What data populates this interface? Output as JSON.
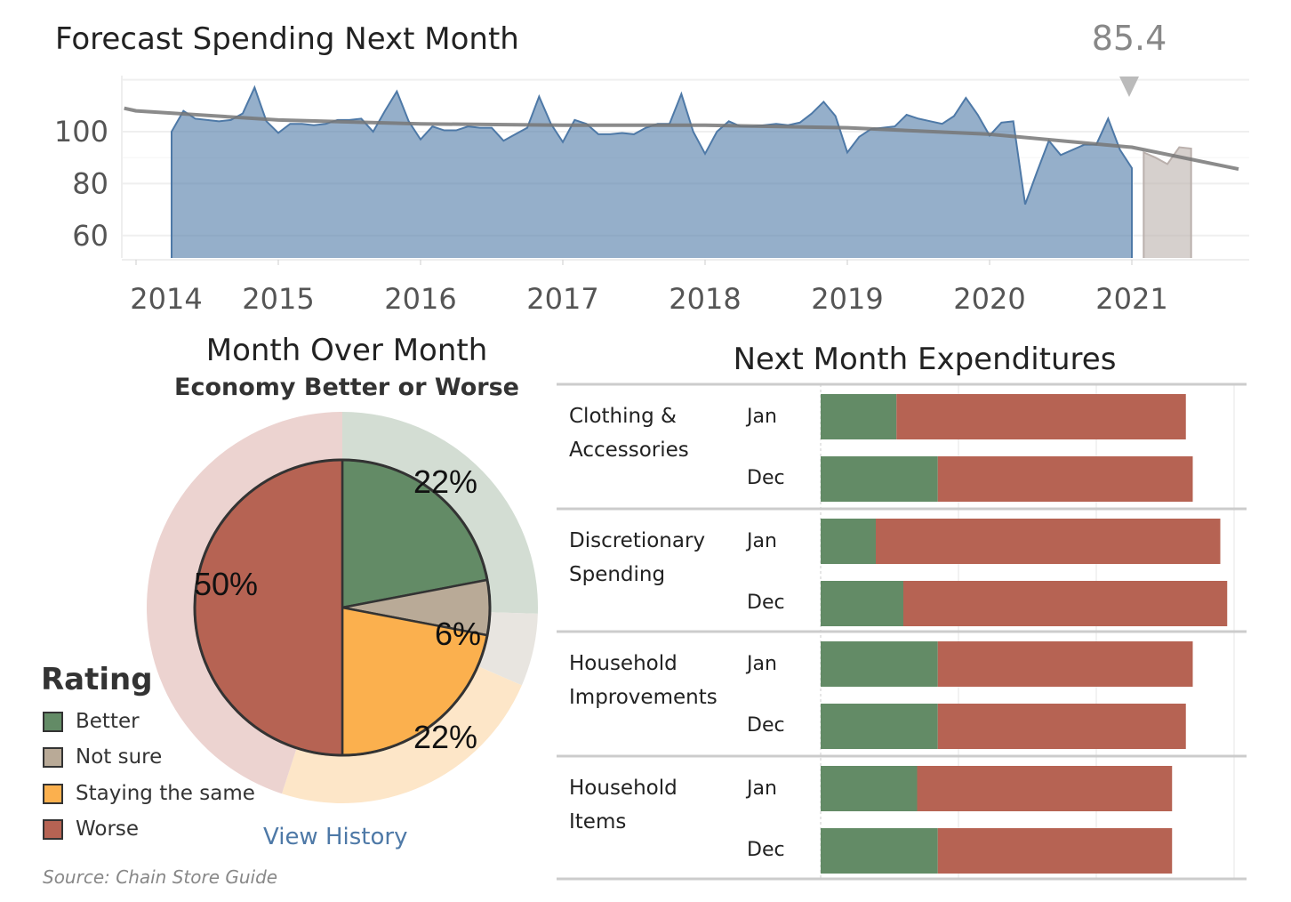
{
  "chart_data": [
    {
      "type": "area",
      "title": "Forecast Spending Next Month",
      "xlabel": "",
      "ylabel": "",
      "y_ticks": [
        60,
        80,
        100
      ],
      "x_ticks": [
        "2014",
        "2015",
        "2016",
        "2017",
        "2018",
        "2019",
        "2020",
        "2021"
      ],
      "ylim": [
        51,
        121
      ],
      "grid": true,
      "colors": {
        "actual": "#4e79a7",
        "forecast": "#bab0ac",
        "trend": "#777777"
      },
      "series": [
        {
          "role": "actual",
          "x": [
            "2014-04",
            "2014-05",
            "2014-06",
            "2014-07",
            "2014-08",
            "2014-09",
            "2014-10",
            "2014-11",
            "2014-12",
            "2015-01",
            "2015-02",
            "2015-03",
            "2015-04",
            "2015-05",
            "2015-06",
            "2015-07",
            "2015-08",
            "2015-09",
            "2015-10",
            "2015-11",
            "2015-12",
            "2016-01",
            "2016-02",
            "2016-03",
            "2016-04",
            "2016-05",
            "2016-06",
            "2016-07",
            "2016-08",
            "2016-09",
            "2016-10",
            "2016-11",
            "2016-12",
            "2017-01",
            "2017-02",
            "2017-03",
            "2017-04",
            "2017-05",
            "2017-06",
            "2017-07",
            "2017-08",
            "2017-09",
            "2017-10",
            "2017-11",
            "2017-12",
            "2018-01",
            "2018-02",
            "2018-03",
            "2018-04",
            "2018-05",
            "2018-06",
            "2018-07",
            "2018-08",
            "2018-09",
            "2018-10",
            "2018-11",
            "2018-12",
            "2019-01",
            "2019-02",
            "2019-03",
            "2019-04",
            "2019-05",
            "2019-06",
            "2019-07",
            "2019-08",
            "2019-09",
            "2019-10",
            "2019-11",
            "2019-12",
            "2020-01",
            "2020-02",
            "2020-03",
            "2020-04",
            "2020-05",
            "2020-06",
            "2020-07",
            "2020-08",
            "2020-09",
            "2020-10",
            "2020-11",
            "2020-12",
            "2021-01"
          ],
          "y": [
            100,
            108,
            105,
            104.5,
            104,
            104.5,
            107,
            117,
            104,
            99.5,
            103,
            103,
            102.5,
            103,
            104.5,
            104.5,
            105,
            100,
            108,
            115.5,
            104,
            97,
            102,
            100.5,
            100.5,
            102,
            101.5,
            101.5,
            96.5,
            99,
            101.5,
            113.5,
            103,
            96,
            104.5,
            103,
            99,
            99,
            99.5,
            99,
            101.5,
            103,
            103,
            114.5,
            100,
            91.5,
            100,
            104,
            102,
            102,
            102.5,
            103,
            102.5,
            103.5,
            107,
            111.5,
            106,
            92,
            98,
            101,
            101.5,
            102,
            106.5,
            105,
            104,
            103,
            106,
            113,
            106.5,
            98.5,
            103.5,
            104,
            72,
            84.5,
            96.5,
            91,
            93,
            95,
            95,
            105,
            93,
            86
          ]
        },
        {
          "role": "forecast",
          "x": [
            "2021-02",
            "2021-03",
            "2021-04",
            "2021-05",
            "2021-06"
          ],
          "y": [
            92,
            90,
            87.5,
            94,
            93.5
          ]
        },
        {
          "role": "trend",
          "x": [
            "2013-12",
            "2014-01",
            "2015-01",
            "2016-01",
            "2017-01",
            "2018-01",
            "2019-01",
            "2020-01",
            "2021-01",
            "2021-10"
          ],
          "y": [
            109,
            108,
            104.5,
            103,
            102.5,
            102.5,
            101.5,
            99,
            94,
            85.6
          ]
        }
      ],
      "annotation": {
        "label": "85.4",
        "x": "2021-01"
      }
    },
    {
      "type": "pie",
      "title": "Month Over Month",
      "subtitle": "Economy Better or Worse",
      "legend_title": "Rating",
      "legend_position": "bottom-left",
      "categories": [
        "Better",
        "Not sure",
        "Staying the same",
        "Worse"
      ],
      "colors": [
        "#638b66",
        "#b9aa97",
        "#fbb04e",
        "#b66353"
      ],
      "ring_colors": [
        "#d3ddd3",
        "#e8e5e0",
        "#fde6c8",
        "#ecd3d0"
      ],
      "values": [
        22,
        6,
        22,
        50
      ],
      "labels": [
        "22%",
        "6%",
        "22%",
        "50%"
      ],
      "outer_ring_values": [
        25.5,
        6,
        23.5,
        45
      ]
    },
    {
      "type": "bar",
      "orientation": "horizontal",
      "stacked": true,
      "title": "Next Month Expenditures",
      "xlim": [
        0,
        62
      ],
      "grid_values": [
        0,
        20,
        40,
        60
      ],
      "colors": [
        "#638b66",
        "#b66353"
      ],
      "groups": [
        {
          "label": "Clothing & Accessories",
          "lines": [
            "Clothing &",
            "Accessories"
          ],
          "rows": [
            {
              "month": "Jan",
              "values": [
                11,
                42
              ]
            },
            {
              "month": "Dec",
              "values": [
                17,
                37
              ]
            }
          ]
        },
        {
          "label": "Discretionary Spending",
          "lines": [
            "Discretionary",
            "Spending"
          ],
          "rows": [
            {
              "month": "Jan",
              "values": [
                8,
                50
              ]
            },
            {
              "month": "Dec",
              "values": [
                12,
                47
              ]
            }
          ]
        },
        {
          "label": "Household Improvements",
          "lines": [
            "Household",
            "Improvements"
          ],
          "rows": [
            {
              "month": "Jan",
              "values": [
                17,
                37
              ]
            },
            {
              "month": "Dec",
              "values": [
                17,
                36
              ]
            }
          ]
        },
        {
          "label": "Household Items",
          "lines": [
            "Household",
            "Items"
          ],
          "rows": [
            {
              "month": "Jan",
              "values": [
                14,
                37
              ]
            },
            {
              "month": "Dec",
              "values": [
                17,
                34
              ]
            }
          ]
        }
      ]
    }
  ],
  "links": {
    "view_history": "View History"
  },
  "source": "Source: Chain Store Guide"
}
